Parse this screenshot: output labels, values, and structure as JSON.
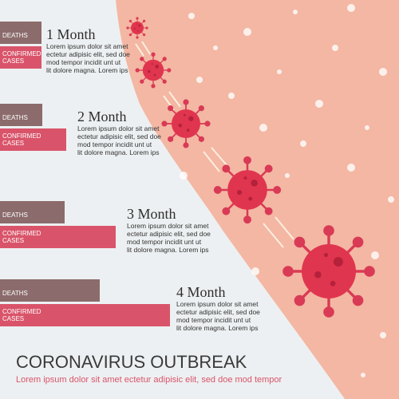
{
  "title": "CORONAVIRUS OUTBREAK",
  "subtitle": "Lorem ipsum dolor sit amet ectetur adipisic elit, sed doe mod tempor",
  "chart_data": {
    "type": "bar",
    "orientation": "horizontal",
    "categories": [
      "1 Month",
      "2 Month",
      "3 Month",
      "4 Month"
    ],
    "descriptions": [
      "Lorem ipsum dolor sit amet\nectetur adipisic elit, sed doe\nmod tempor  incidit unt ut\nlit dolore  magna. Lorem ips",
      "Lorem ipsum dolor sit amet\nectetur adipisic elit, sed doe\nmod tempor  incidit unt ut\nlit dolore  magna. Lorem ips",
      "Lorem ipsum dolor sit amet\nectetur adipisic elit, sed doe\nmod tempor  incidit unt ut\nlit dolore  magna. Lorem ips",
      "Lorem ipsum dolor sit amet\nectetur adipisic elit, sed doe\nmod tempor  incidit unt ut\nlit dolore  magna. Lorem ips"
    ],
    "series": [
      {
        "name": "DEATHS",
        "color": "#8b6b6b",
        "values": [
          52,
          53,
          81,
          125
        ]
      },
      {
        "name": "CONFIRMED\nCASES",
        "color": "#d9546a",
        "values": [
          52,
          83,
          145,
          213
        ]
      }
    ],
    "xlim": [
      0,
      250
    ]
  }
}
